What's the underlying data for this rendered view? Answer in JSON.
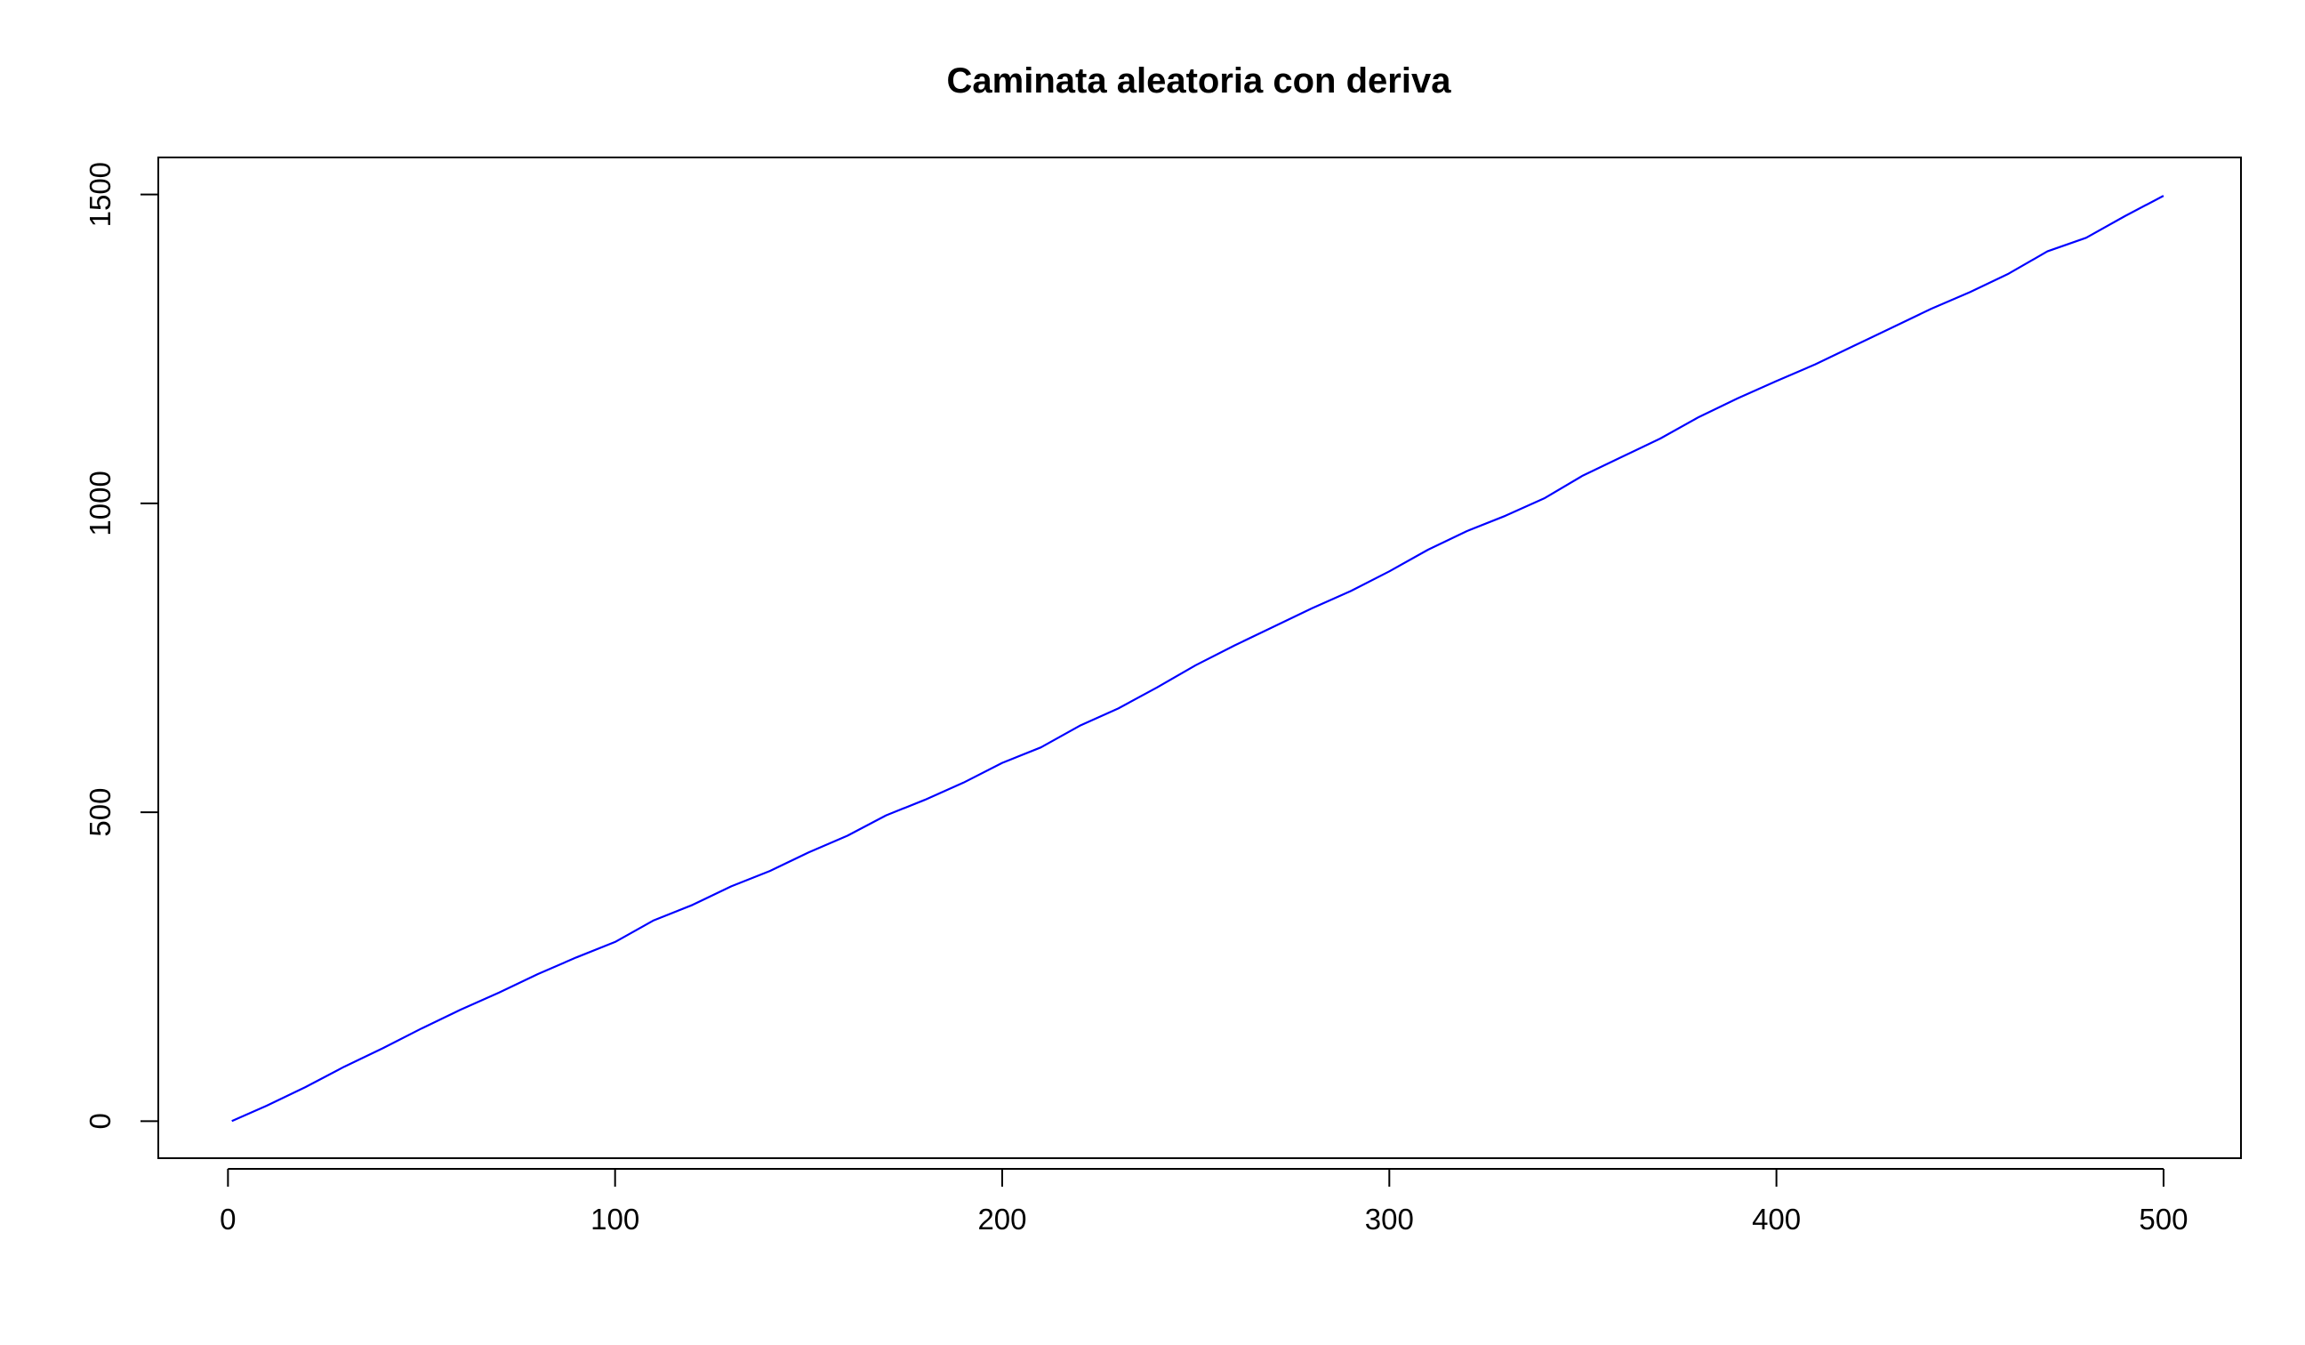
{
  "chart_data": {
    "type": "line",
    "title": "Caminata aleatoria con deriva",
    "xlabel": "",
    "ylabel": "",
    "xlim": [
      -18,
      520
    ],
    "ylim": [
      -60,
      1560
    ],
    "x_ticks": [
      0,
      100,
      200,
      300,
      400,
      500
    ],
    "y_ticks": [
      0,
      500,
      1000,
      1500
    ],
    "x_tick_labels": [
      "0",
      "100",
      "200",
      "300",
      "400",
      "500"
    ],
    "y_tick_labels": [
      "0",
      "500",
      "1000",
      "1500"
    ],
    "grid": false,
    "legend": "none",
    "series_color": "#0000ff",
    "series": [
      {
        "x": [
          1,
          10,
          20,
          30,
          40,
          50,
          60,
          70,
          80,
          90,
          100,
          110,
          120,
          130,
          140,
          150,
          160,
          170,
          180,
          190,
          200,
          210,
          220,
          230,
          240,
          250,
          260,
          270,
          280,
          290,
          300,
          310,
          320,
          330,
          340,
          350,
          360,
          370,
          380,
          390,
          400,
          410,
          420,
          430,
          440,
          450,
          460,
          470,
          480,
          490,
          500
        ],
        "values": [
          0,
          25,
          55,
          88,
          118,
          150,
          180,
          208,
          238,
          265,
          290,
          325,
          350,
          380,
          405,
          435,
          462,
          495,
          520,
          548,
          580,
          605,
          640,
          668,
          702,
          738,
          770,
          800,
          830,
          858,
          890,
          925,
          955,
          980,
          1008,
          1045,
          1075,
          1105,
          1140,
          1170,
          1198,
          1225,
          1255,
          1285,
          1315,
          1342,
          1372,
          1408,
          1430,
          1465,
          1498
        ]
      }
    ]
  }
}
